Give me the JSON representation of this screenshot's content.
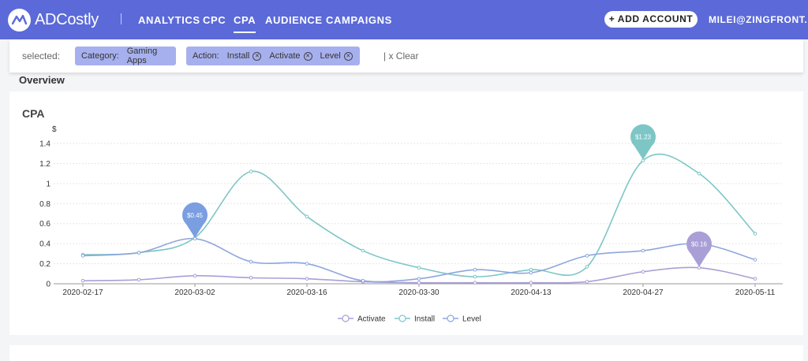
{
  "app": {
    "logo_text": "ADCostly",
    "nav": [
      {
        "label": "ANALYTICS"
      },
      {
        "label": "CPC"
      },
      {
        "label": "CPA",
        "active": true
      },
      {
        "label": "AUDIENCE"
      },
      {
        "label": "CAMPAIGNS"
      }
    ],
    "add_account_label": "+ ADD ACCOUNT",
    "user_label": "MILEI@ZINGFRONT..."
  },
  "filters": {
    "label": "selected:",
    "category_key": "Category:",
    "category_value": "Gaming Apps",
    "action_key": "Action:",
    "action_values": [
      "Install",
      "Activate",
      "Level"
    ],
    "clear_label": "| x Clear"
  },
  "overview_title": "Overview",
  "chart_data": {
    "type": "line",
    "title": "CPA",
    "ylabel": "$",
    "ylim": [
      0,
      1.4
    ],
    "yticks": [
      "0",
      "0.2",
      "0.4",
      "0.6",
      "0.8",
      "1",
      "1.2",
      "1.4"
    ],
    "x": [
      "2020-02-17",
      "2020-02-24",
      "2020-03-02",
      "2020-03-09",
      "2020-03-16",
      "2020-03-23",
      "2020-03-30",
      "2020-04-06",
      "2020-04-13",
      "2020-04-20",
      "2020-04-27",
      "2020-05-04",
      "2020-05-11"
    ],
    "xtick_labels": [
      "2020-02-17",
      "2020-03-02",
      "2020-03-16",
      "2020-03-30",
      "2020-04-13",
      "2020-04-27",
      "2020-05-11"
    ],
    "series": [
      {
        "name": "Activate",
        "color": "#a99fd6",
        "values": [
          0.03,
          0.04,
          0.08,
          0.06,
          0.05,
          0.02,
          0.01,
          0.01,
          0.01,
          0.02,
          0.12,
          0.16,
          0.05
        ]
      },
      {
        "name": "Install",
        "color": "#7ec6c6",
        "values": [
          0.29,
          0.31,
          0.46,
          1.12,
          0.67,
          0.33,
          0.16,
          0.07,
          0.14,
          0.17,
          1.23,
          1.1,
          0.5
        ]
      },
      {
        "name": "Level",
        "color": "#8ea6dd",
        "values": [
          0.28,
          0.31,
          0.45,
          0.22,
          0.2,
          0.03,
          0.05,
          0.14,
          0.11,
          0.28,
          0.33,
          0.4,
          0.24
        ]
      }
    ],
    "annotations": [
      {
        "label": "$0.45",
        "series": "Level",
        "x": "2020-03-02",
        "value": 0.45,
        "color": "#7a9ee0"
      },
      {
        "label": "$1.23",
        "series": "Install",
        "x": "2020-04-27",
        "value": 1.23,
        "color": "#7ec6c6"
      },
      {
        "label": "$0.16",
        "series": "Activate",
        "x": "2020-05-04",
        "value": 0.16,
        "color": "#a99fd6"
      }
    ],
    "legend_placement": "bottom-center",
    "grid": true
  }
}
